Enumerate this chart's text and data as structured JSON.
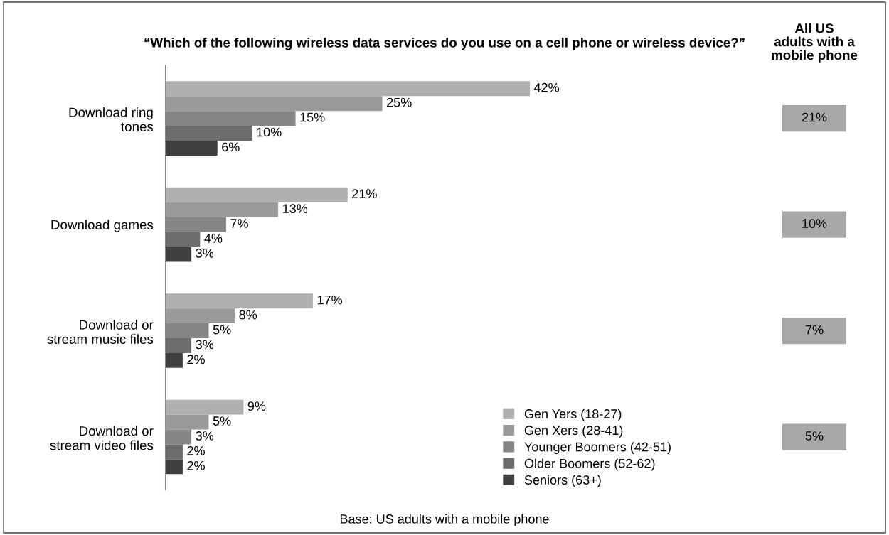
{
  "chart_data": [
    {
      "type": "bar",
      "orientation": "horizontal",
      "title": "“Which of the following wireless data services do you use on a cell phone or wireless device?”",
      "categories": [
        "Download ring\ntones",
        "Download games",
        "Download or\nstream music files",
        "Download or\nstream video files"
      ],
      "series": [
        {
          "name": "Gen Yers (18-27)",
          "color": "#b0b0b0",
          "values": [
            42,
            21,
            17,
            9
          ],
          "value_labels": [
            "42%",
            "21%",
            "17%",
            "9%"
          ]
        },
        {
          "name": "Gen Xers (28-41)",
          "color": "#9a9a9a",
          "values": [
            25,
            13,
            8,
            5
          ],
          "value_labels": [
            "25%",
            "13%",
            "8%",
            "5%"
          ]
        },
        {
          "name": "Younger Boomers (42-51)",
          "color": "#858585",
          "values": [
            15,
            7,
            5,
            3
          ],
          "value_labels": [
            "15%",
            "7%",
            "5%",
            "3%"
          ]
        },
        {
          "name": "Older Boomers (52-62)",
          "color": "#6c6c6c",
          "values": [
            10,
            4,
            3,
            2
          ],
          "value_labels": [
            "10%",
            "4%",
            "3%",
            "2%"
          ]
        },
        {
          "name": "Seniors (63+)",
          "color": "#404040",
          "values": [
            6,
            3,
            2,
            2
          ],
          "value_labels": [
            "6%",
            "3%",
            "2%",
            "2%"
          ]
        }
      ],
      "legend": "bottom right",
      "grid": false,
      "tick_labels": "y",
      "annotations": [
        "Base: US adults with a mobile phone"
      ]
    },
    {
      "type": "other",
      "title": "All US\nadults with a\nmobile phone",
      "categories": [
        null,
        null,
        null,
        null
      ],
      "value_labels": [
        "21%",
        "10%",
        "7%",
        "5%"
      ],
      "color": "#a8a8a8"
    }
  ]
}
